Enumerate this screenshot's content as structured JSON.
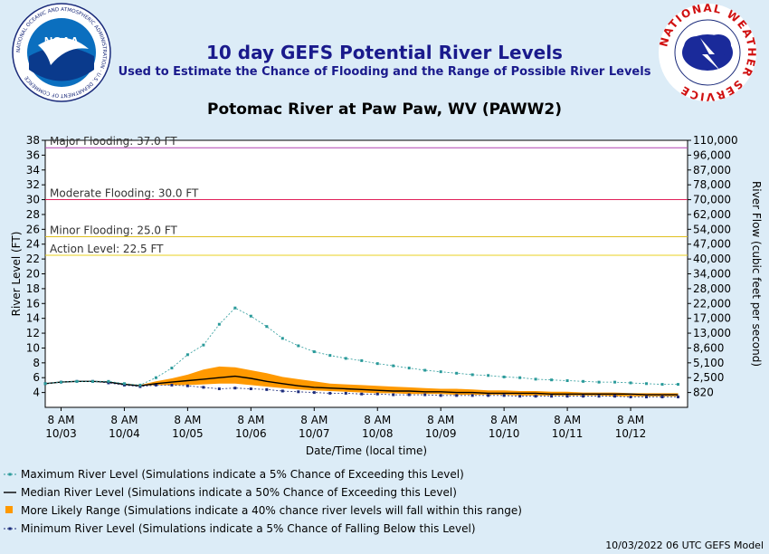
{
  "header": {
    "title": "10 day GEFS Potential River Levels",
    "subtitle": "Used to Estimate the Chance of Flooding and the Range of Possible River Levels",
    "site": "Potomac River at Paw Paw, WV (PAWW2)"
  },
  "logos": {
    "left": {
      "name": "NOAA",
      "ring_text": "NATIONAL OCEANIC AND ATMOSPHERIC ADMINISTRATION · U.S. DEPARTMENT OF COMMERCE"
    },
    "right": {
      "ring_text": "NATIONAL WEATHER SERVICE"
    }
  },
  "footer": "10/03/2022 06 UTC GEFS Model",
  "colors": {
    "background": "#dcecf7",
    "max": "#2a9a9a",
    "median": "#000000",
    "range": "#ff9900",
    "min": "#1a2a7a",
    "major": "#b040b0",
    "moderate": "#e0205a",
    "minor": "#e0c020",
    "action": "#e8d020"
  },
  "chart_data": {
    "type": "line",
    "xlabel": "Date/Time (local time)",
    "ylabel": "River Level (FT)",
    "y2label": "River Flow (cubic feet per second)",
    "ylim": [
      2,
      38
    ],
    "yticks": [
      4,
      6,
      8,
      10,
      12,
      14,
      16,
      18,
      20,
      22,
      24,
      26,
      28,
      30,
      32,
      34,
      36,
      38
    ],
    "y2ticks": [
      "820",
      "2,500",
      "5,100",
      "8,600",
      "13,000",
      "17,000",
      "22,000",
      "28,000",
      "34,000",
      "40,000",
      "47,000",
      "54,000",
      "62,000",
      "70,000",
      "78,000",
      "87,000",
      "96,000",
      "110,000"
    ],
    "xlim": [
      -0.25,
      9.9
    ],
    "xticks": [
      {
        "top": "8 AM",
        "bottom": "10/03"
      },
      {
        "top": "8 AM",
        "bottom": "10/04"
      },
      {
        "top": "8 AM",
        "bottom": "10/05"
      },
      {
        "top": "8 AM",
        "bottom": "10/06"
      },
      {
        "top": "8 AM",
        "bottom": "10/07"
      },
      {
        "top": "8 AM",
        "bottom": "10/08"
      },
      {
        "top": "8 AM",
        "bottom": "10/09"
      },
      {
        "top": "8 AM",
        "bottom": "10/10"
      },
      {
        "top": "8 AM",
        "bottom": "10/11"
      },
      {
        "top": "8 AM",
        "bottom": "10/12"
      }
    ],
    "thresholds": [
      {
        "label": "Major Flooding: 37.0 FT",
        "value": 37.0
      },
      {
        "label": "Moderate Flooding: 30.0 FT",
        "value": 30.0
      },
      {
        "label": "Minor Flooding: 25.0 FT",
        "value": 25.0
      },
      {
        "label": "Action Level: 22.5 FT",
        "value": 22.5
      }
    ],
    "series": [
      {
        "name": "Maximum River Level (Simulations indicate a 5% Chance of Exceeding this Level)",
        "x": [
          -0.25,
          0.0,
          0.25,
          0.5,
          0.75,
          1.0,
          1.25,
          1.5,
          1.75,
          2.0,
          2.25,
          2.5,
          2.75,
          3.0,
          3.25,
          3.5,
          3.75,
          4.0,
          4.25,
          4.5,
          4.75,
          5.0,
          5.25,
          5.5,
          5.75,
          6.0,
          6.25,
          6.5,
          6.75,
          7.0,
          7.25,
          7.5,
          7.75,
          8.0,
          8.25,
          8.5,
          8.75,
          9.0,
          9.25,
          9.5,
          9.75
        ],
        "values": [
          5.2,
          5.4,
          5.5,
          5.5,
          5.5,
          5.2,
          5.0,
          6.0,
          7.3,
          9.1,
          10.4,
          13.2,
          15.4,
          14.3,
          12.9,
          11.3,
          10.3,
          9.5,
          9.0,
          8.6,
          8.3,
          7.9,
          7.6,
          7.3,
          7.0,
          6.8,
          6.6,
          6.4,
          6.3,
          6.1,
          6.0,
          5.8,
          5.7,
          5.6,
          5.5,
          5.4,
          5.4,
          5.3,
          5.2,
          5.1,
          5.1
        ]
      },
      {
        "name": "Median River Level (Simulations indicate a 50% Chance of Exceeding this Level)",
        "x": [
          -0.25,
          0.0,
          0.25,
          0.5,
          0.75,
          1.0,
          1.25,
          1.5,
          1.75,
          2.0,
          2.25,
          2.5,
          2.75,
          3.0,
          3.25,
          3.5,
          3.75,
          4.0,
          4.25,
          4.5,
          4.75,
          5.0,
          5.25,
          5.5,
          5.75,
          6.0,
          6.25,
          6.5,
          6.75,
          7.0,
          7.25,
          7.5,
          7.75,
          8.0,
          8.25,
          8.5,
          8.75,
          9.0,
          9.25,
          9.5,
          9.75
        ],
        "values": [
          5.2,
          5.4,
          5.5,
          5.5,
          5.4,
          5.1,
          4.9,
          5.2,
          5.4,
          5.6,
          5.8,
          6.0,
          6.2,
          5.9,
          5.5,
          5.2,
          4.9,
          4.7,
          4.6,
          4.5,
          4.4,
          4.3,
          4.2,
          4.2,
          4.1,
          4.1,
          4.0,
          4.0,
          3.9,
          3.9,
          3.9,
          3.9,
          3.8,
          3.8,
          3.8,
          3.8,
          3.8,
          3.8,
          3.7,
          3.7,
          3.7
        ]
      },
      {
        "name": "More Likely Range (Simulations indicate a 40% chance river levels will fall within this range)",
        "x": [
          0.75,
          1.0,
          1.25,
          1.5,
          1.75,
          2.0,
          2.25,
          2.5,
          2.75,
          3.0,
          3.25,
          3.5,
          3.75,
          4.0,
          4.25,
          4.5,
          4.75,
          5.0,
          5.25,
          5.5,
          5.75,
          6.0,
          6.25,
          6.5,
          6.75,
          7.0,
          7.25,
          7.5,
          7.75,
          8.0,
          8.25,
          8.5,
          8.75,
          9.0,
          9.25,
          9.5,
          9.75
        ],
        "upper": [
          5.4,
          5.2,
          5.0,
          5.5,
          5.9,
          6.4,
          7.1,
          7.5,
          7.4,
          7.0,
          6.6,
          6.1,
          5.8,
          5.5,
          5.2,
          5.1,
          5.0,
          4.9,
          4.8,
          4.7,
          4.6,
          4.5,
          4.5,
          4.4,
          4.3,
          4.3,
          4.2,
          4.2,
          4.1,
          4.1,
          4.0,
          4.0,
          4.0,
          3.9,
          3.9,
          3.9,
          3.9
        ],
        "lower": [
          5.4,
          5.1,
          4.9,
          5.0,
          5.0,
          5.0,
          5.1,
          5.2,
          5.2,
          5.0,
          4.8,
          4.6,
          4.4,
          4.3,
          4.2,
          4.1,
          4.0,
          3.9,
          3.9,
          3.8,
          3.8,
          3.8,
          3.7,
          3.7,
          3.7,
          3.7,
          3.6,
          3.6,
          3.6,
          3.6,
          3.6,
          3.6,
          3.5,
          3.5,
          3.5,
          3.5,
          3.5
        ]
      },
      {
        "name": "Minimum River Level (Simulations indicate a 5% Chance of Falling Below this Level)",
        "x": [
          -0.25,
          0.0,
          0.25,
          0.5,
          0.75,
          1.0,
          1.25,
          1.5,
          1.75,
          2.0,
          2.25,
          2.5,
          2.75,
          3.0,
          3.25,
          3.5,
          3.75,
          4.0,
          4.25,
          4.5,
          4.75,
          5.0,
          5.25,
          5.5,
          5.75,
          6.0,
          6.25,
          6.5,
          6.75,
          7.0,
          7.25,
          7.5,
          7.75,
          8.0,
          8.25,
          8.5,
          8.75,
          9.0,
          9.25,
          9.5,
          9.75
        ],
        "values": [
          5.2,
          5.4,
          5.5,
          5.5,
          5.3,
          5.0,
          4.8,
          5.0,
          5.0,
          4.9,
          4.7,
          4.5,
          4.6,
          4.5,
          4.4,
          4.2,
          4.1,
          4.0,
          3.9,
          3.9,
          3.8,
          3.8,
          3.7,
          3.7,
          3.7,
          3.6,
          3.6,
          3.6,
          3.6,
          3.6,
          3.5,
          3.5,
          3.5,
          3.5,
          3.5,
          3.5,
          3.5,
          3.4,
          3.4,
          3.4,
          3.4
        ]
      }
    ],
    "legend": [
      {
        "key": "max",
        "label": "Maximum River Level (Simulations indicate a 5% Chance of Exceeding this Level)"
      },
      {
        "key": "median",
        "label": "Median River Level (Simulations indicate a 50% Chance of Exceeding this Level)"
      },
      {
        "key": "range",
        "label": "More Likely Range (Simulations indicate a 40% chance river levels will fall within this range)"
      },
      {
        "key": "min",
        "label": "Minimum River Level (Simulations indicate a 5% Chance of Falling Below this Level)"
      }
    ]
  }
}
